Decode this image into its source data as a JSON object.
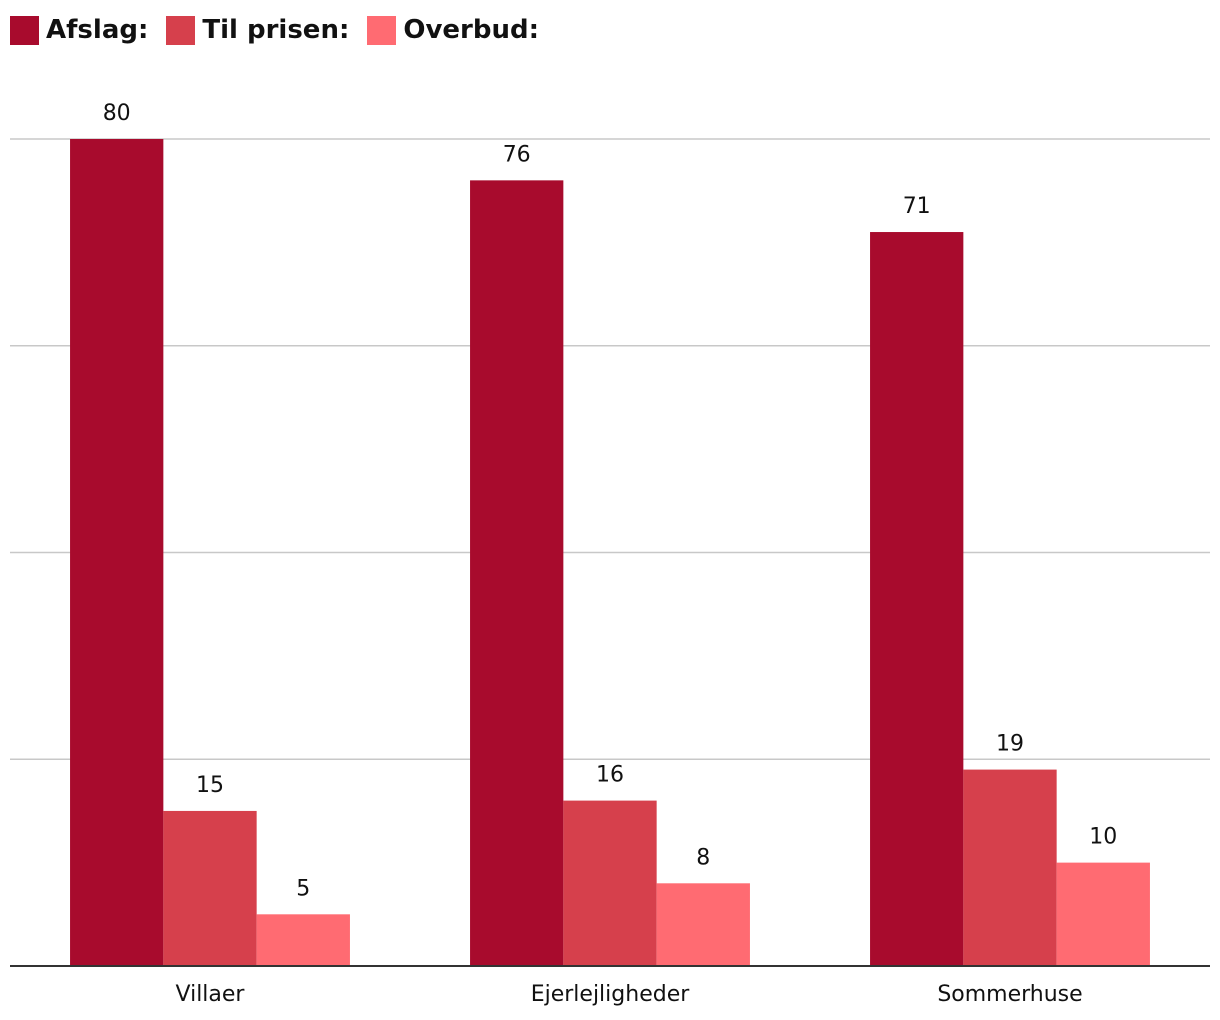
{
  "chart_data": {
    "type": "bar",
    "title": "",
    "xlabel": "",
    "ylabel": "",
    "categories": [
      "Villaer",
      "Ejerlejligheder",
      "Sommerhuse"
    ],
    "series": [
      {
        "name": "Afslag:",
        "color": "#a80b2d",
        "values": [
          80,
          76,
          71
        ]
      },
      {
        "name": "Til prisen:",
        "color": "#d6404c",
        "values": [
          15,
          16,
          19
        ]
      },
      {
        "name": "Overbud:",
        "color": "#ff6b72",
        "values": [
          5,
          8,
          10
        ]
      }
    ],
    "ylim": [
      0,
      80
    ],
    "yticks": [
      0,
      20,
      40,
      60,
      80
    ],
    "grid": true,
    "legend_position": "top-left",
    "data_labels": true
  }
}
